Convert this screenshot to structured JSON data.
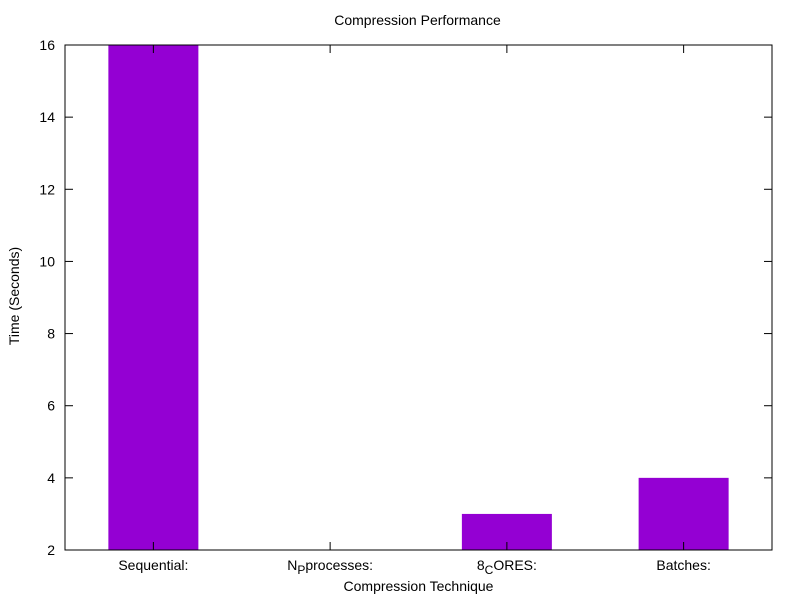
{
  "chart_data": {
    "type": "bar",
    "title": "Compression Performance",
    "xlabel": "Compression Technique",
    "ylabel": "Time (Seconds)",
    "categories": [
      {
        "main": "Sequential:",
        "sub": "",
        "rest": ""
      },
      {
        "main": "N",
        "sub": "P",
        "rest": "processes:"
      },
      {
        "main": "8",
        "sub": "C",
        "rest": "ORES:"
      },
      {
        "main": "Batches:",
        "sub": "",
        "rest": ""
      }
    ],
    "values": [
      16,
      2,
      3,
      4
    ],
    "ylim": [
      2,
      16
    ],
    "yticks": [
      2,
      4,
      6,
      8,
      10,
      12,
      14,
      16
    ],
    "bar_color": "#9400d3",
    "grid": false
  }
}
